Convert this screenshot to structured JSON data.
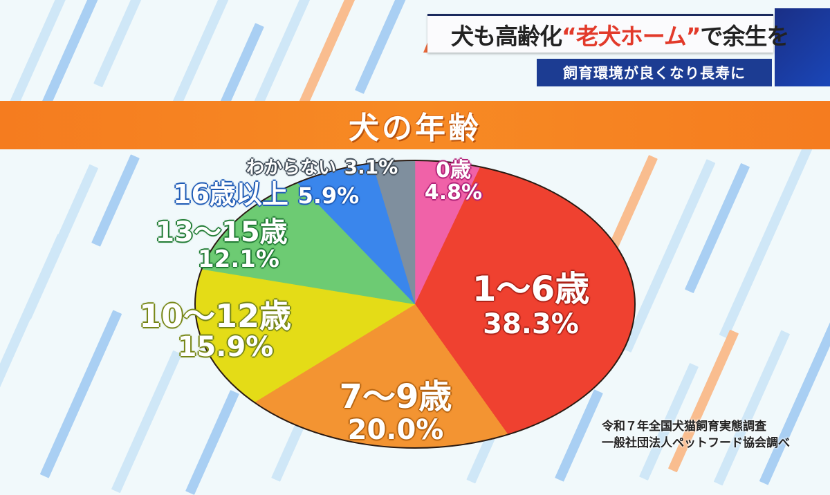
{
  "headline": {
    "main_prefix": "犬も高齢化",
    "main_highlight": "“老犬ホーム”",
    "main_suffix": "で余生を",
    "sub": "飼育環境が良くなり長寿に"
  },
  "chart_title": "犬の年齢",
  "source": {
    "line1": "令和７年全国犬猫飼育実態調査",
    "line2": "一般社団法人ペットフード協会調べ"
  },
  "slices": [
    {
      "name": "0歳",
      "pct": "4.8%",
      "color": "#f062a8"
    },
    {
      "name": "1〜6歳",
      "pct": "38.3%",
      "color": "#ef4130"
    },
    {
      "name": "7〜9歳",
      "pct": "20.0%",
      "color": "#f39432"
    },
    {
      "name": "10〜12歳",
      "pct": "15.9%",
      "color": "#e4dc17"
    },
    {
      "name": "13〜15歳",
      "pct": "12.1%",
      "color": "#6dcb73"
    },
    {
      "name": "16歳以上",
      "pct": "5.9%",
      "color": "#3a86ec"
    },
    {
      "name": "わからない",
      "pct": "3.1%",
      "color": "#7f8f9e"
    }
  ],
  "chart_data": {
    "type": "pie",
    "title": "犬の年齢",
    "categories": [
      "0歳",
      "1〜6歳",
      "7〜9歳",
      "10〜12歳",
      "13〜15歳",
      "16歳以上",
      "わからない"
    ],
    "values": [
      4.8,
      38.3,
      20.0,
      15.9,
      12.1,
      5.9,
      3.1
    ],
    "unit": "%",
    "colors": [
      "#f062a8",
      "#ef4130",
      "#f39432",
      "#e4dc17",
      "#6dcb73",
      "#3a86ec",
      "#7f8f9e"
    ],
    "start_angle": "12 o'clock",
    "direction": "clockwise",
    "legend": "none (inline labels)",
    "source": "令和７年全国犬猫飼育実態調査 / 一般社団法人ペットフード協会調べ"
  }
}
